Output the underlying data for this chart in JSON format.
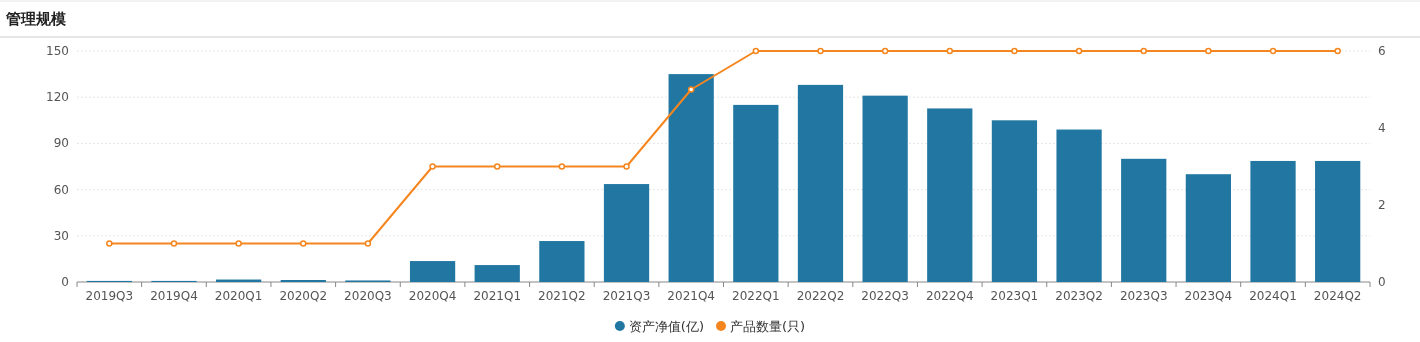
{
  "chart_data": {
    "type": "bar",
    "title": "管理规模",
    "categories": [
      "2019Q3",
      "2019Q4",
      "2020Q1",
      "2020Q2",
      "2020Q3",
      "2020Q4",
      "2021Q1",
      "2021Q2",
      "2021Q3",
      "2021Q4",
      "2022Q1",
      "2022Q2",
      "2022Q3",
      "2022Q4",
      "2023Q1",
      "2023Q2",
      "2023Q3",
      "2023Q4",
      "2024Q1",
      "2024Q2"
    ],
    "series": [
      {
        "name": "资产净值(亿)",
        "color": "#2277a2",
        "values": [
          0.7,
          0.7,
          1.6,
          1.3,
          1.0,
          13.6,
          11,
          26.6,
          63.6,
          135,
          115,
          128,
          121,
          112.7,
          105,
          99,
          80,
          70,
          78.6,
          78.6
        ]
      },
      {
        "name": "产品数量(只)",
        "type": "line",
        "axis": "y2",
        "color": "#f5861f",
        "values": [
          1,
          1,
          1,
          1,
          1,
          3,
          3,
          3,
          3,
          5,
          6,
          6,
          6,
          6,
          6,
          6,
          6,
          6,
          6,
          6
        ]
      }
    ],
    "ylim": [
      0,
      150
    ],
    "yticks": [
      0,
      30,
      60,
      90,
      120,
      150
    ],
    "y2lim": [
      0,
      6
    ],
    "y2ticks": [
      0,
      2,
      4,
      6
    ],
    "grid": "y",
    "legend": "bottom",
    "marker": "circle",
    "line_style": "solid"
  }
}
